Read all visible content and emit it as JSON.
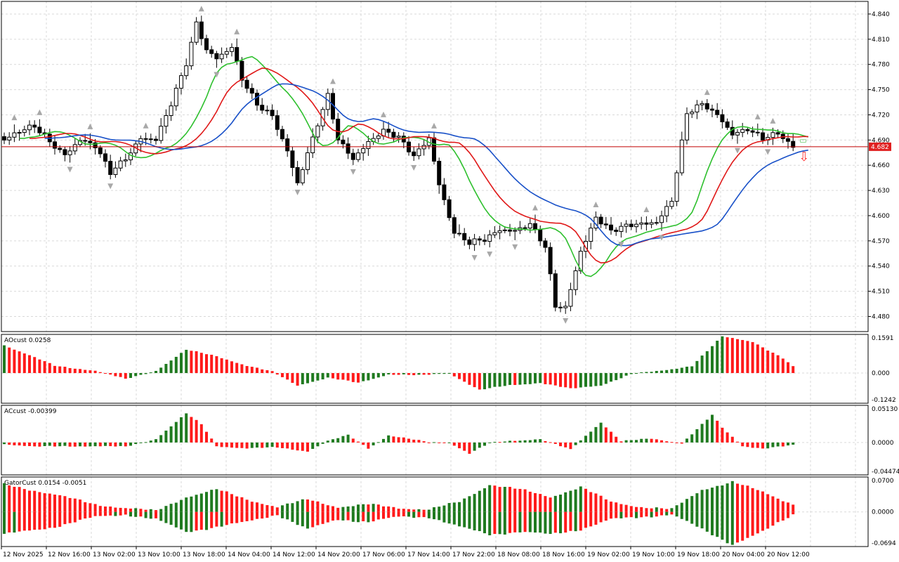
{
  "chart_data": {
    "type": "candlestick",
    "main": {
      "ylim": [
        4.462,
        4.855
      ],
      "ticks": [
        "4.840",
        "4.810",
        "4.780",
        "4.750",
        "4.720",
        "4.690",
        "4.660",
        "4.630",
        "4.600",
        "4.570",
        "4.540",
        "4.510",
        "4.480"
      ],
      "tick_values": [
        4.84,
        4.81,
        4.78,
        4.75,
        4.72,
        4.69,
        4.66,
        4.63,
        4.6,
        4.57,
        4.54,
        4.51,
        4.48
      ],
      "current_price": 4.682,
      "current_price_label": "4.682",
      "bar_count": 160,
      "close_anchors": [
        [
          0,
          4.69
        ],
        [
          6,
          4.705
        ],
        [
          9,
          4.69
        ],
        [
          12,
          4.675
        ],
        [
          15,
          4.69
        ],
        [
          18,
          4.68
        ],
        [
          21,
          4.65
        ],
        [
          24,
          4.67
        ],
        [
          27,
          4.695
        ],
        [
          30,
          4.69
        ],
        [
          33,
          4.73
        ],
        [
          36,
          4.78
        ],
        [
          38,
          4.83
        ],
        [
          40,
          4.8
        ],
        [
          42,
          4.79
        ],
        [
          45,
          4.8
        ],
        [
          47,
          4.76
        ],
        [
          50,
          4.73
        ],
        [
          53,
          4.72
        ],
        [
          56,
          4.68
        ],
        [
          58,
          4.64
        ],
        [
          61,
          4.69
        ],
        [
          64,
          4.74
        ],
        [
          66,
          4.69
        ],
        [
          69,
          4.67
        ],
        [
          72,
          4.69
        ],
        [
          75,
          4.7
        ],
        [
          78,
          4.69
        ],
        [
          81,
          4.67
        ],
        [
          84,
          4.695
        ],
        [
          86,
          4.64
        ],
        [
          89,
          4.58
        ],
        [
          92,
          4.565
        ],
        [
          95,
          4.57
        ],
        [
          98,
          4.585
        ],
        [
          101,
          4.585
        ],
        [
          104,
          4.59
        ],
        [
          107,
          4.56
        ],
        [
          109,
          4.49
        ],
        [
          111,
          4.49
        ],
        [
          114,
          4.56
        ],
        [
          117,
          4.6
        ],
        [
          120,
          4.58
        ],
        [
          123,
          4.585
        ],
        [
          126,
          4.59
        ],
        [
          129,
          4.595
        ],
        [
          132,
          4.62
        ],
        [
          135,
          4.72
        ],
        [
          138,
          4.73
        ],
        [
          141,
          4.72
        ],
        [
          144,
          4.7
        ],
        [
          147,
          4.705
        ],
        [
          150,
          4.69
        ],
        [
          153,
          4.695
        ],
        [
          156,
          4.682
        ]
      ],
      "sell_arrow_label": "⇩",
      "buy_marker_label": "▭",
      "ma_lines": [
        {
          "name": "",
          "color": "#2ec02e",
          "period": 5
        },
        {
          "name": "",
          "color": "#e01818",
          "period": 8
        },
        {
          "name": "",
          "color": "#1850c8",
          "period": 13
        }
      ]
    },
    "oscillators": [
      {
        "id": "ao",
        "label": "AOcust 0.0258",
        "ticks": [
          "0.1591",
          "0.000",
          "-0.1242"
        ],
        "tick_values": [
          0.1591,
          0.0,
          -0.1242
        ],
        "ylim": [
          -0.1242,
          0.1591
        ],
        "anchors": [
          [
            0,
            0.115
          ],
          [
            10,
            0.03
          ],
          [
            18,
            0.01
          ],
          [
            24,
            -0.025
          ],
          [
            30,
            0.01
          ],
          [
            36,
            0.095
          ],
          [
            42,
            0.07
          ],
          [
            48,
            0.03
          ],
          [
            53,
            0.005
          ],
          [
            58,
            -0.05
          ],
          [
            64,
            -0.02
          ],
          [
            70,
            -0.04
          ],
          [
            76,
            -0.005
          ],
          [
            82,
            -0.01
          ],
          [
            88,
            0.0
          ],
          [
            94,
            -0.07
          ],
          [
            100,
            -0.05
          ],
          [
            106,
            -0.04
          ],
          [
            112,
            -0.065
          ],
          [
            118,
            -0.05
          ],
          [
            124,
            -0.005
          ],
          [
            130,
            0.01
          ],
          [
            136,
            0.03
          ],
          [
            142,
            0.15
          ],
          [
            148,
            0.13
          ],
          [
            154,
            0.06
          ],
          [
            156,
            0.0258
          ]
        ]
      },
      {
        "id": "ac",
        "label": "ACcust -0.00399",
        "ticks": [
          "0.05130",
          "0.0000",
          "-0.04474"
        ],
        "tick_values": [
          0.0513,
          0.0,
          -0.04474
        ],
        "ylim": [
          -0.04474,
          0.0513
        ],
        "anchors": [
          [
            0,
            -0.002
          ],
          [
            6,
            -0.006
          ],
          [
            12,
            -0.005
          ],
          [
            18,
            -0.005
          ],
          [
            24,
            -0.006
          ],
          [
            30,
            0.005
          ],
          [
            36,
            0.04
          ],
          [
            39,
            0.025
          ],
          [
            42,
            -0.005
          ],
          [
            48,
            -0.008
          ],
          [
            54,
            -0.007
          ],
          [
            60,
            -0.012
          ],
          [
            64,
            0.002
          ],
          [
            68,
            0.01
          ],
          [
            72,
            -0.008
          ],
          [
            76,
            0.01
          ],
          [
            80,
            0.005
          ],
          [
            84,
            0.0
          ],
          [
            88,
            0.0
          ],
          [
            92,
            -0.015
          ],
          [
            96,
            -0.001
          ],
          [
            100,
            0.002
          ],
          [
            106,
            0.005
          ],
          [
            112,
            -0.01
          ],
          [
            118,
            0.028
          ],
          [
            122,
            0.002
          ],
          [
            128,
            0.005
          ],
          [
            134,
            -0.001
          ],
          [
            140,
            0.038
          ],
          [
            142,
            0.02
          ],
          [
            146,
            -0.005
          ],
          [
            150,
            -0.008
          ],
          [
            156,
            -0.00399
          ]
        ]
      }
    ],
    "gator": {
      "label": "GatorCust 0.0154 -0.0051",
      "ticks": [
        "0.0700",
        "0.0000",
        "-0.0694"
      ],
      "tick_values": [
        0.07,
        0.0,
        -0.0694
      ],
      "ylim": [
        -0.0694,
        0.07
      ],
      "upper_anchors": [
        [
          0,
          0.055
        ],
        [
          10,
          0.035
        ],
        [
          18,
          0.015
        ],
        [
          24,
          0.008
        ],
        [
          30,
          0.002
        ],
        [
          36,
          0.03
        ],
        [
          42,
          0.045
        ],
        [
          48,
          0.025
        ],
        [
          54,
          0.01
        ],
        [
          60,
          0.025
        ],
        [
          66,
          0.01
        ],
        [
          72,
          0.015
        ],
        [
          78,
          0.008
        ],
        [
          84,
          0.005
        ],
        [
          90,
          0.02
        ],
        [
          96,
          0.055
        ],
        [
          102,
          0.045
        ],
        [
          108,
          0.03
        ],
        [
          114,
          0.05
        ],
        [
          120,
          0.02
        ],
        [
          126,
          0.01
        ],
        [
          132,
          0.005
        ],
        [
          138,
          0.045
        ],
        [
          144,
          0.06
        ],
        [
          150,
          0.04
        ],
        [
          156,
          0.0154
        ]
      ],
      "lower_anchors": [
        [
          0,
          -0.045
        ],
        [
          10,
          -0.03
        ],
        [
          18,
          -0.01
        ],
        [
          24,
          -0.005
        ],
        [
          30,
          -0.015
        ],
        [
          36,
          -0.04
        ],
        [
          42,
          -0.03
        ],
        [
          48,
          -0.02
        ],
        [
          54,
          -0.005
        ],
        [
          60,
          -0.035
        ],
        [
          66,
          -0.015
        ],
        [
          72,
          -0.02
        ],
        [
          78,
          -0.01
        ],
        [
          84,
          -0.01
        ],
        [
          90,
          -0.03
        ],
        [
          96,
          -0.045
        ],
        [
          102,
          -0.04
        ],
        [
          108,
          -0.045
        ],
        [
          114,
          -0.035
        ],
        [
          120,
          -0.015
        ],
        [
          126,
          -0.01
        ],
        [
          132,
          -0.005
        ],
        [
          138,
          -0.035
        ],
        [
          144,
          -0.065
        ],
        [
          150,
          -0.04
        ],
        [
          156,
          -0.0051
        ]
      ]
    },
    "x_labels": [
      "12 Nov 2025",
      "12 Nov 16:00",
      "13 Nov 02:00",
      "13 Nov 10:00",
      "13 Nov 18:00",
      "14 Nov 04:00",
      "14 Nov 12:00",
      "14 Nov 20:00",
      "17 Nov 06:00",
      "17 Nov 14:00",
      "17 Nov 22:00",
      "18 Nov 08:00",
      "18 Nov 16:00",
      "19 Nov 02:00",
      "19 Nov 10:00",
      "19 Nov 18:00",
      "20 Nov 04:00",
      "20 Nov 12:00"
    ],
    "colors": {
      "grid": "#d9d9d9",
      "up_bar": "#1f7a1f",
      "down_bar": "#ff1a1a",
      "price_line": "#c00000",
      "price_label_bg": "#e02020",
      "fractal": "#a8a8a8",
      "sell_arrow": "#ff3030",
      "buy_marker": "#4fc04f"
    }
  }
}
